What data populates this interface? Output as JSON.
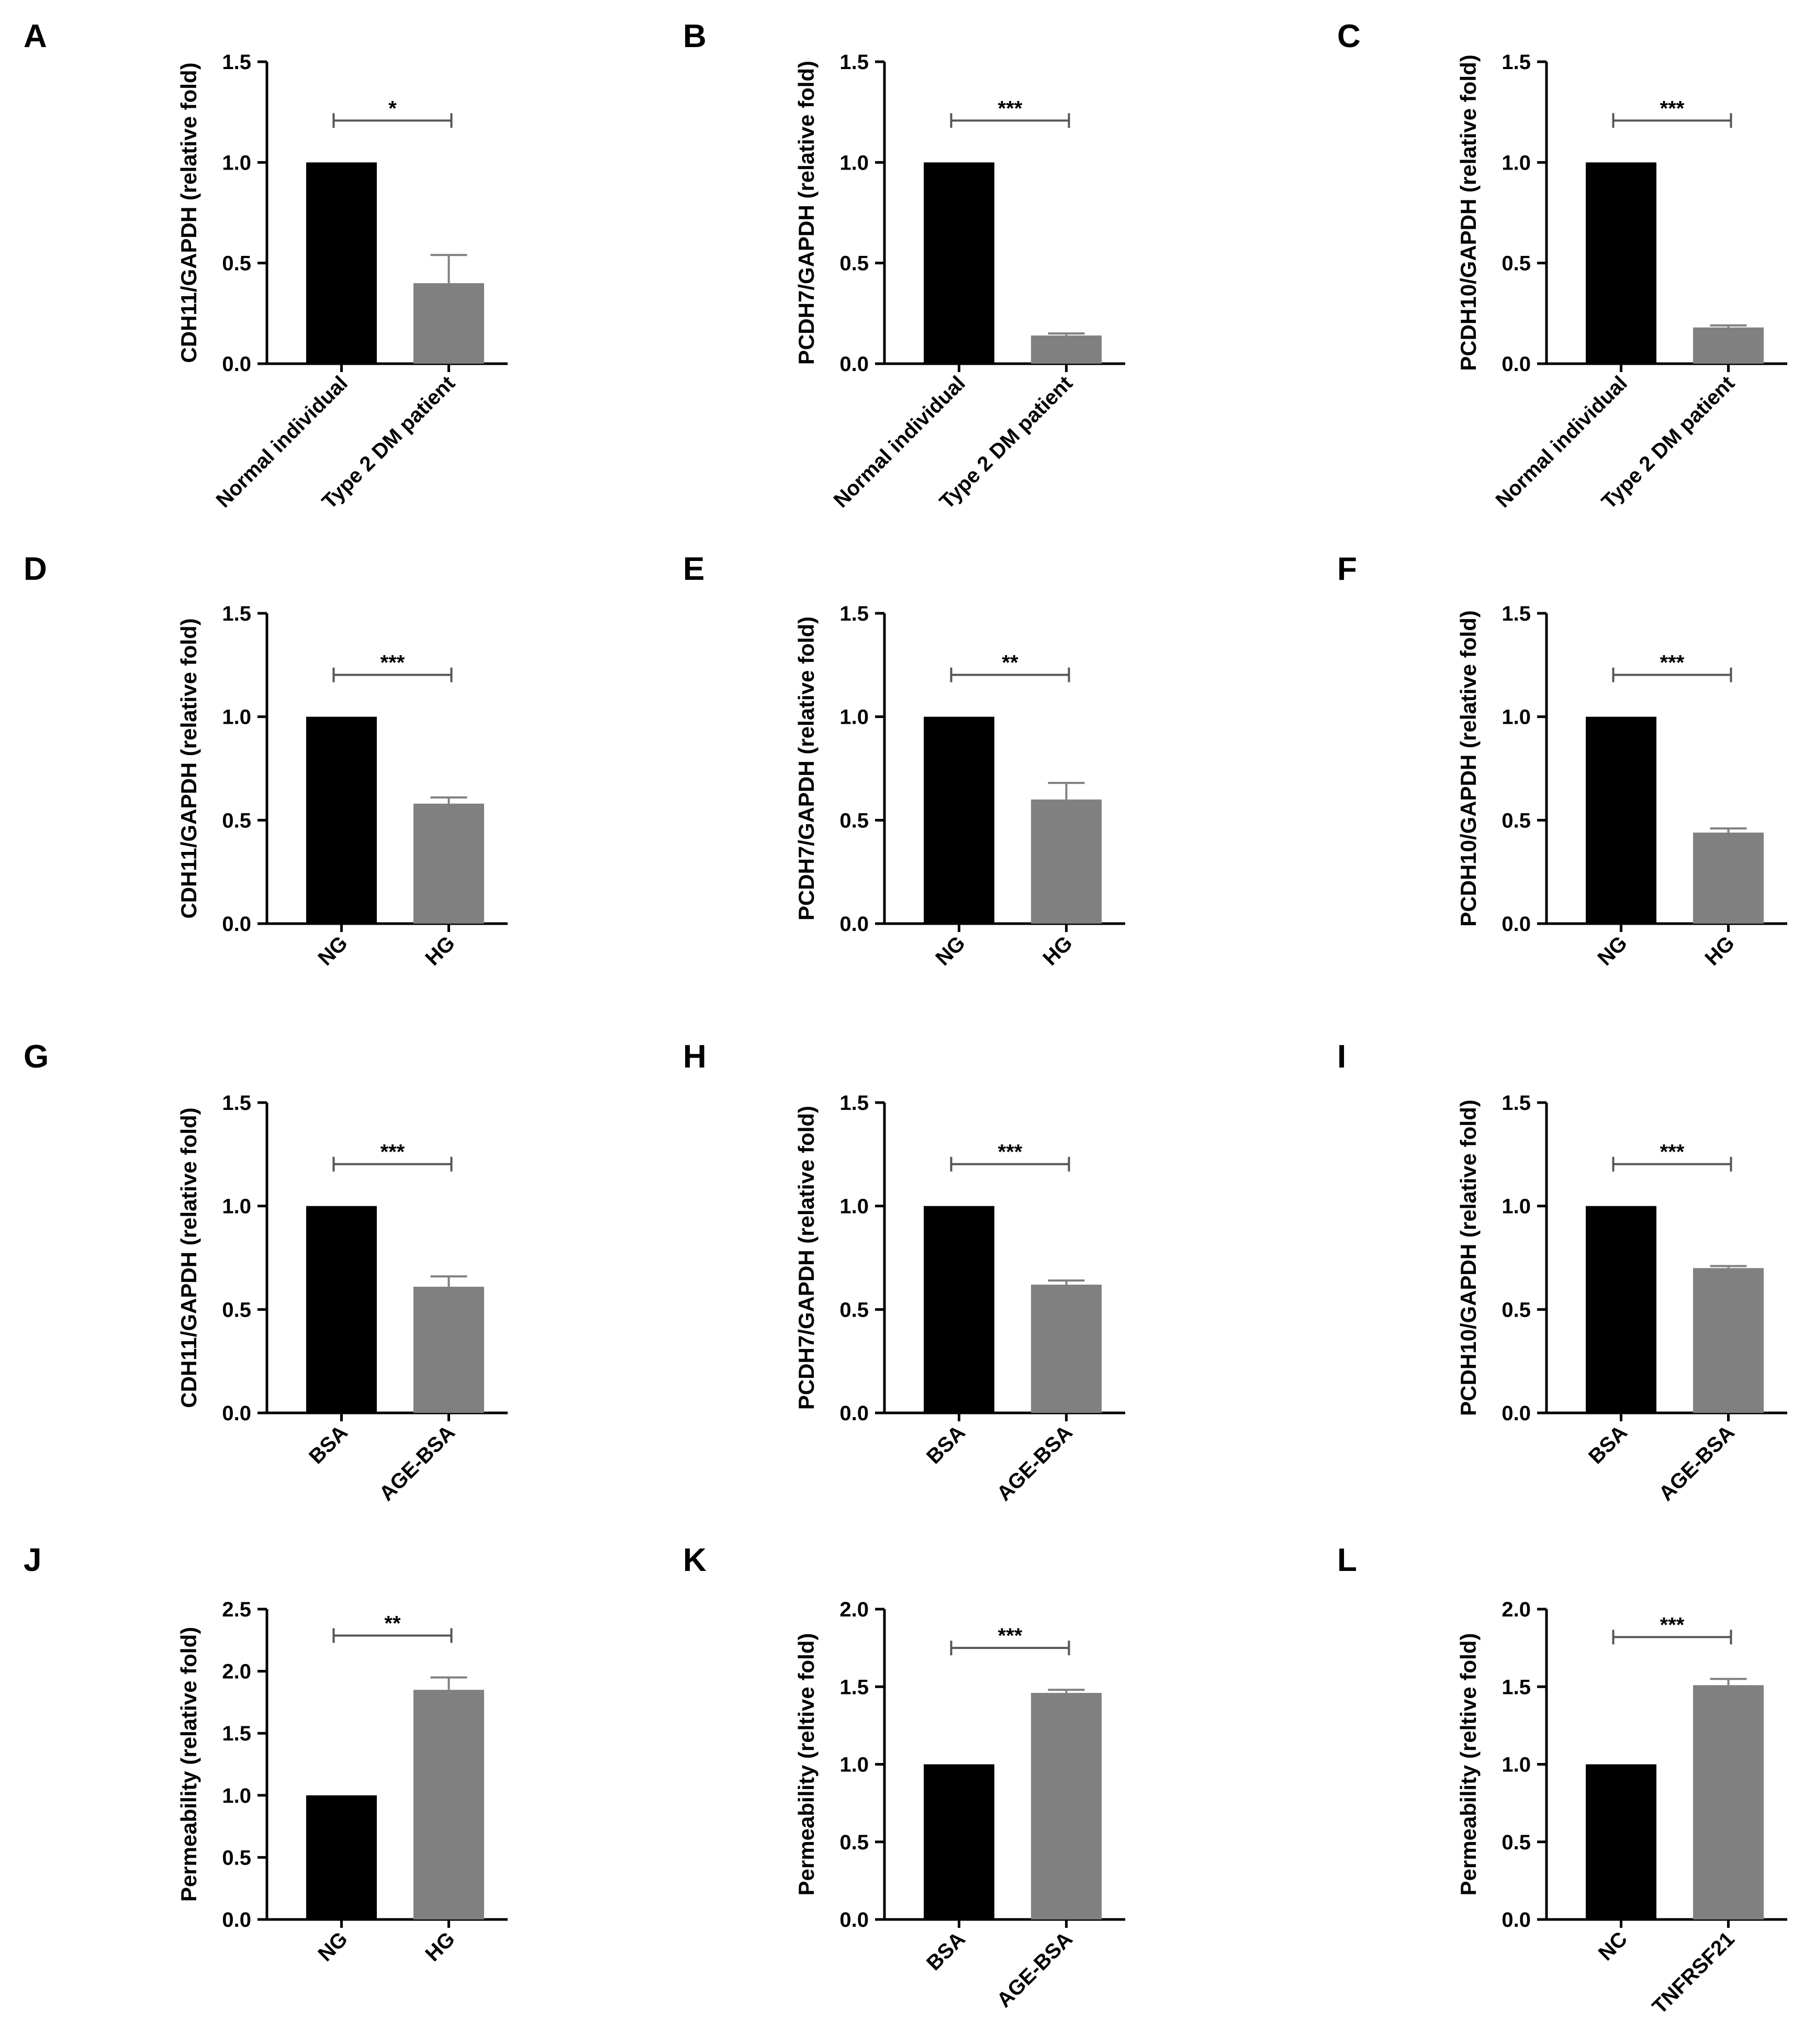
{
  "figure": {
    "colors": {
      "bar_black": "#000000",
      "bar_gray": "#808080",
      "axis": "#000000",
      "background": "#ffffff"
    }
  },
  "chart_data": [
    {
      "panel": "A",
      "type": "bar",
      "ylabel": "CDH11/GAPDH (relative fold)",
      "ylim": [
        0,
        1.5
      ],
      "yticks": [
        "0.0",
        "0.5",
        "1.0",
        "1.5"
      ],
      "categories": [
        "Normal individual",
        "Type 2 DM patient"
      ],
      "values": [
        1.0,
        0.4
      ],
      "errors": [
        0,
        0.14
      ],
      "significance": "*"
    },
    {
      "panel": "B",
      "type": "bar",
      "ylabel": "PCDH7/GAPDH (relative fold)",
      "ylim": [
        0,
        1.5
      ],
      "yticks": [
        "0.0",
        "0.5",
        "1.0",
        "1.5"
      ],
      "categories": [
        "Normal individual",
        "Type 2 DM patient"
      ],
      "values": [
        1.0,
        0.14
      ],
      "errors": [
        0,
        0.01
      ],
      "significance": "***"
    },
    {
      "panel": "C",
      "type": "bar",
      "ylabel": "PCDH10/GAPDH (relative fold)",
      "ylim": [
        0,
        1.5
      ],
      "yticks": [
        "0.0",
        "0.5",
        "1.0",
        "1.5"
      ],
      "categories": [
        "Normal individual",
        "Type 2 DM patient"
      ],
      "values": [
        1.0,
        0.18
      ],
      "errors": [
        0,
        0.01
      ],
      "significance": "***"
    },
    {
      "panel": "D",
      "type": "bar",
      "ylabel": "CDH11/GAPDH (relative fold)",
      "ylim": [
        0,
        1.5
      ],
      "yticks": [
        "0.0",
        "0.5",
        "1.0",
        "1.5"
      ],
      "categories": [
        "NG",
        "HG"
      ],
      "values": [
        1.0,
        0.58
      ],
      "errors": [
        0,
        0.03
      ],
      "significance": "***"
    },
    {
      "panel": "E",
      "type": "bar",
      "ylabel": "PCDH7/GAPDH (relative fold)",
      "ylim": [
        0,
        1.5
      ],
      "yticks": [
        "0.0",
        "0.5",
        "1.0",
        "1.5"
      ],
      "categories": [
        "NG",
        "HG"
      ],
      "values": [
        1.0,
        0.6
      ],
      "errors": [
        0,
        0.08
      ],
      "significance": "**"
    },
    {
      "panel": "F",
      "type": "bar",
      "ylabel": "PCDH10/GAPDH (relative fold)",
      "ylim": [
        0,
        1.5
      ],
      "yticks": [
        "0.0",
        "0.5",
        "1.0",
        "1.5"
      ],
      "categories": [
        "NG",
        "HG"
      ],
      "values": [
        1.0,
        0.44
      ],
      "errors": [
        0,
        0.02
      ],
      "significance": "***"
    },
    {
      "panel": "G",
      "type": "bar",
      "ylabel": "CDH11/GAPDH (relative fold)",
      "ylim": [
        0,
        1.5
      ],
      "yticks": [
        "0.0",
        "0.5",
        "1.0",
        "1.5"
      ],
      "categories": [
        "BSA",
        "AGE-BSA"
      ],
      "values": [
        1.0,
        0.61
      ],
      "errors": [
        0,
        0.05
      ],
      "significance": "***"
    },
    {
      "panel": "H",
      "type": "bar",
      "ylabel": "PCDH7/GAPDH (relative fold)",
      "ylim": [
        0,
        1.5
      ],
      "yticks": [
        "0.0",
        "0.5",
        "1.0",
        "1.5"
      ],
      "categories": [
        "BSA",
        "AGE-BSA"
      ],
      "values": [
        1.0,
        0.62
      ],
      "errors": [
        0,
        0.02
      ],
      "significance": "***"
    },
    {
      "panel": "I",
      "type": "bar",
      "ylabel": "PCDH10/GAPDH (relative fold)",
      "ylim": [
        0,
        1.5
      ],
      "yticks": [
        "0.0",
        "0.5",
        "1.0",
        "1.5"
      ],
      "categories": [
        "BSA",
        "AGE-BSA"
      ],
      "values": [
        1.0,
        0.7
      ],
      "errors": [
        0,
        0.01
      ],
      "significance": "***"
    },
    {
      "panel": "J",
      "type": "bar",
      "ylabel": "Permeability (relative fold)",
      "ylim": [
        0,
        2.5
      ],
      "yticks": [
        "0.0",
        "0.5",
        "1.0",
        "1.5",
        "2.0",
        "2.5"
      ],
      "categories": [
        "NG",
        "HG"
      ],
      "values": [
        1.0,
        1.85
      ],
      "errors": [
        0,
        0.1
      ],
      "significance": "**"
    },
    {
      "panel": "K",
      "type": "bar",
      "ylabel": "Permeability (reltive fold)",
      "ylim": [
        0,
        2.0
      ],
      "yticks": [
        "0.0",
        "0.5",
        "1.0",
        "1.5",
        "2.0"
      ],
      "categories": [
        "BSA",
        "AGE-BSA"
      ],
      "values": [
        1.0,
        1.46
      ],
      "errors": [
        0,
        0.02
      ],
      "significance": "***"
    },
    {
      "panel": "L",
      "type": "bar",
      "ylabel": "Permeability (reltive fold)",
      "ylim": [
        0,
        2.0
      ],
      "yticks": [
        "0.0",
        "0.5",
        "1.0",
        "1.5",
        "2.0"
      ],
      "categories": [
        "NC",
        "TNFRSF21"
      ],
      "values": [
        1.0,
        1.51
      ],
      "errors": [
        0,
        0.04
      ],
      "significance": "***"
    }
  ]
}
